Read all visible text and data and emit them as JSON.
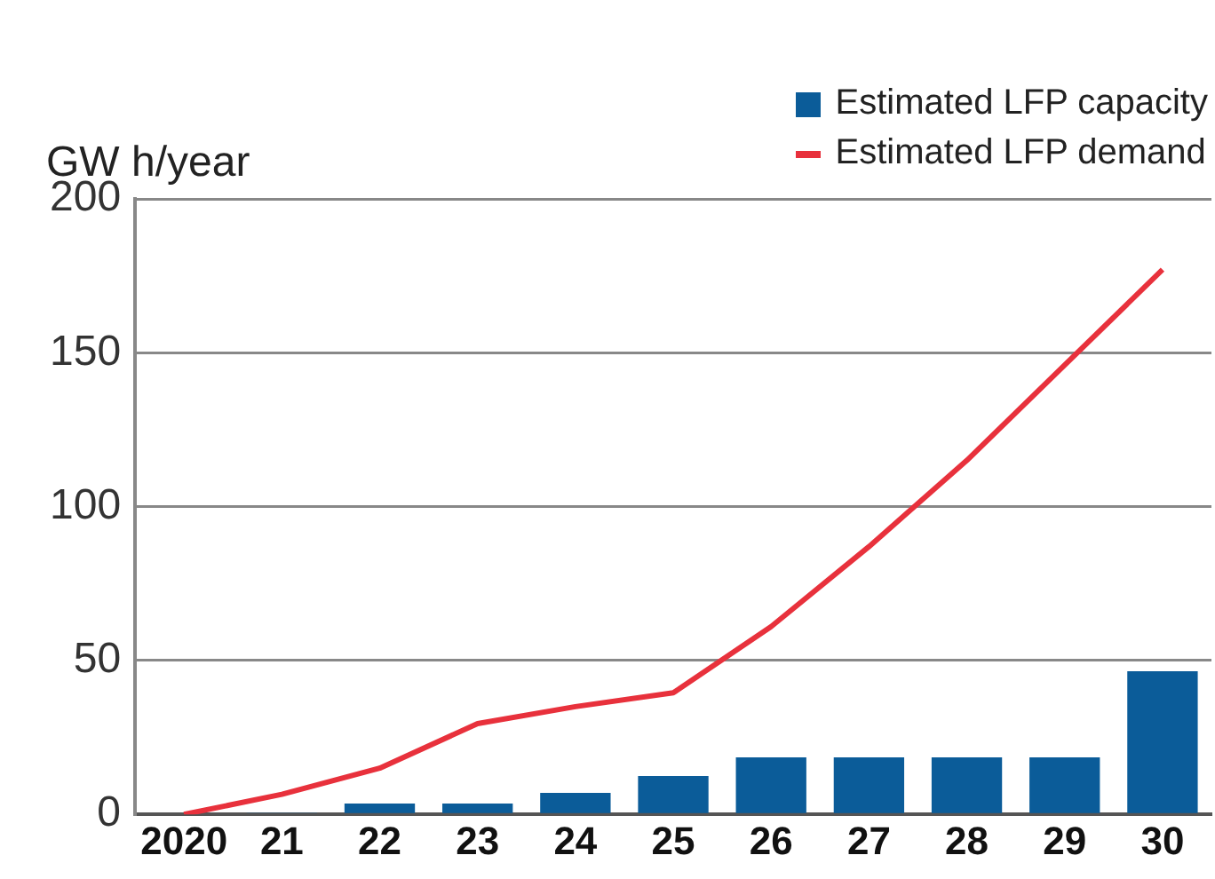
{
  "chart_data": {
    "type": "bar",
    "ylabel": "GW h/year",
    "categories": [
      "2020",
      "21",
      "22",
      "23",
      "24",
      "25",
      "26",
      "27",
      "28",
      "29",
      "30"
    ],
    "series": [
      {
        "name": "Estimated LFP capacity",
        "color": "#0b5c99",
        "values": [
          null,
          0.5,
          3.5,
          3.5,
          7,
          12.5,
          18.5,
          18.5,
          18.5,
          18.5,
          46.5
        ]
      },
      {
        "name": "Estimated LFP demand",
        "type": "line",
        "color": "#e8313c",
        "values": [
          0,
          6.5,
          15,
          29.5,
          35,
          39.5,
          61,
          87,
          115,
          146,
          177
        ]
      }
    ],
    "ylim": [
      0,
      200
    ],
    "yticks": [
      0,
      50,
      100,
      150,
      200
    ],
    "grid": "y",
    "legend": "top right",
    "marker": "none",
    "line_style": "solid"
  }
}
